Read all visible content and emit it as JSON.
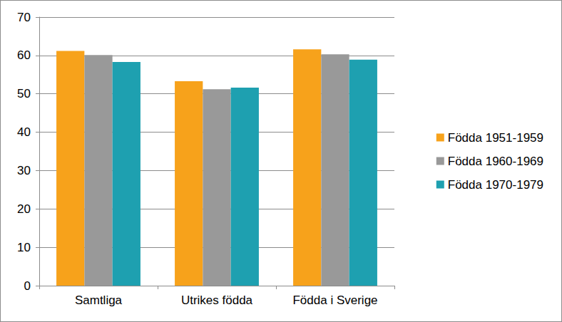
{
  "chart_data": {
    "type": "bar",
    "categories": [
      "Samtliga",
      "Utrikes födda",
      "Födda i Sverige"
    ],
    "series": [
      {
        "name": "Födda 1951-1959",
        "color": "#f7a21b",
        "values": [
          61.2,
          53.3,
          61.6
        ]
      },
      {
        "name": "Födda 1960-1969",
        "color": "#999999",
        "values": [
          60.1,
          51.2,
          60.3
        ]
      },
      {
        "name": "Födda 1970-1979",
        "color": "#1ea0b0",
        "values": [
          58.3,
          51.6,
          58.9
        ]
      }
    ],
    "ylim": [
      0,
      70
    ],
    "yticks": [
      0,
      10,
      20,
      30,
      40,
      50,
      60,
      70
    ],
    "grid": true,
    "legend": "right"
  }
}
